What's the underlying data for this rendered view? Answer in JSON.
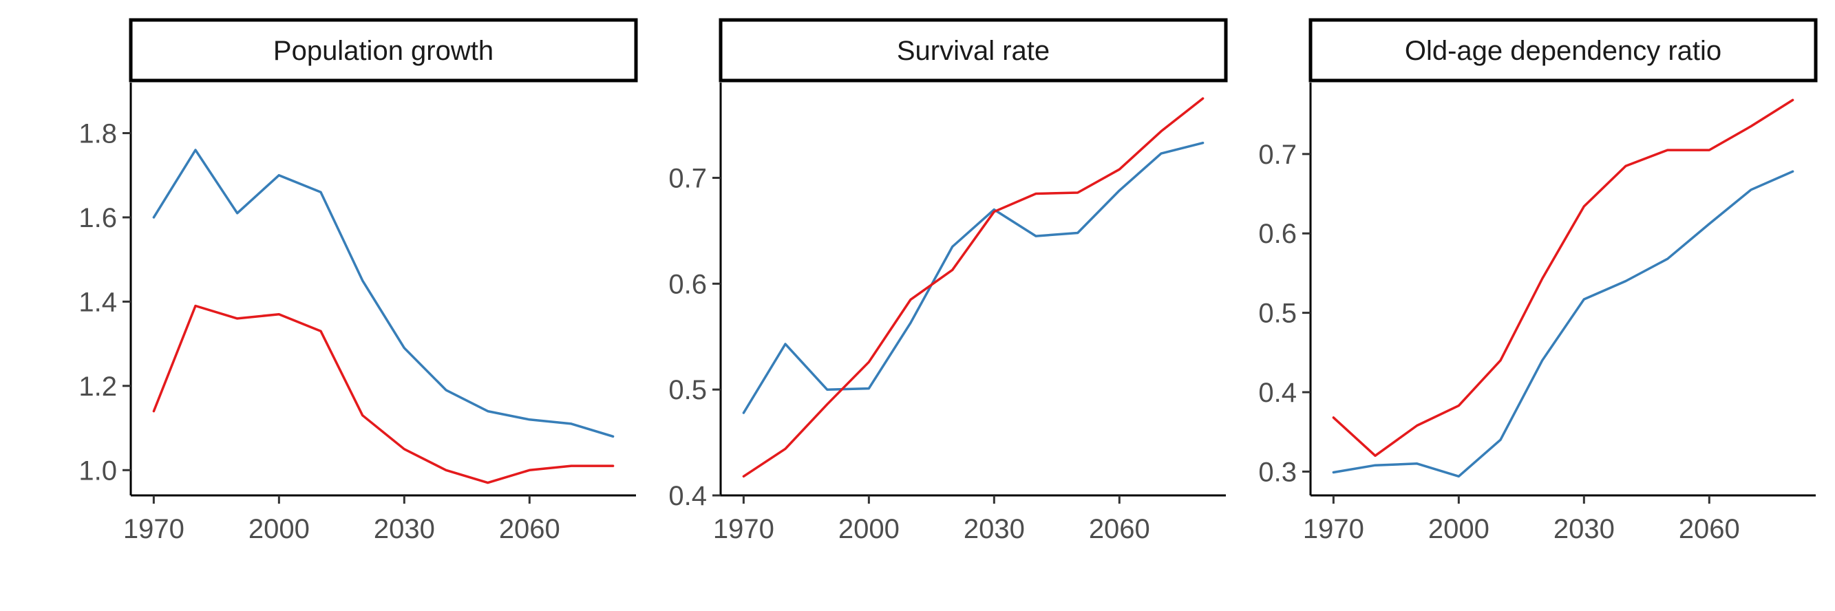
{
  "chart_data": [
    {
      "type": "line",
      "title": "Population growth",
      "x_ticks": [
        1970,
        2000,
        2030,
        2060
      ],
      "y_ticks": [
        1.0,
        1.2,
        1.4,
        1.6,
        1.8
      ],
      "y_tick_labels": [
        "1.0",
        "1.2",
        "1.4",
        "1.6",
        "1.8"
      ],
      "xlim": [
        1964.5,
        2085.5
      ],
      "ylim": [
        0.94,
        1.92
      ],
      "series": [
        {
          "color": "#377eb8",
          "x": [
            1970,
            1980,
            1990,
            2000,
            2010,
            2020,
            2030,
            2040,
            2050,
            2060,
            2070,
            2080
          ],
          "values": [
            1.6,
            1.76,
            1.61,
            1.7,
            1.66,
            1.45,
            1.29,
            1.19,
            1.14,
            1.12,
            1.11,
            1.08
          ]
        },
        {
          "color": "#e41a1c",
          "x": [
            1970,
            1980,
            1990,
            2000,
            2010,
            2020,
            2030,
            2040,
            2050,
            2060,
            2070,
            2080
          ],
          "values": [
            1.14,
            1.39,
            1.36,
            1.37,
            1.33,
            1.13,
            1.05,
            1.0,
            0.97,
            1.0,
            1.01,
            1.01
          ]
        }
      ]
    },
    {
      "type": "line",
      "title": "Survival rate",
      "x_ticks": [
        1970,
        2000,
        2030,
        2060
      ],
      "y_ticks": [
        0.4,
        0.5,
        0.6,
        0.7
      ],
      "y_tick_labels": [
        "0.4",
        "0.5",
        "0.6",
        "0.7"
      ],
      "xlim": [
        1964.5,
        2085.5
      ],
      "ylim": [
        0.4,
        0.79
      ],
      "series": [
        {
          "color": "#377eb8",
          "x": [
            1970,
            1980,
            1990,
            2000,
            2010,
            2020,
            2030,
            2040,
            2050,
            2060,
            2070,
            2080
          ],
          "values": [
            0.478,
            0.543,
            0.5,
            0.501,
            0.563,
            0.635,
            0.67,
            0.645,
            0.648,
            0.688,
            0.723,
            0.733
          ]
        },
        {
          "color": "#e41a1c",
          "x": [
            1970,
            1980,
            1990,
            2000,
            2010,
            2020,
            2030,
            2040,
            2050,
            2060,
            2070,
            2080
          ],
          "values": [
            0.418,
            0.444,
            0.486,
            0.526,
            0.585,
            0.613,
            0.668,
            0.685,
            0.686,
            0.708,
            0.744,
            0.775
          ]
        }
      ]
    },
    {
      "type": "line",
      "title": "Old-age dependency ratio",
      "x_ticks": [
        1970,
        2000,
        2030,
        2060
      ],
      "y_ticks": [
        0.3,
        0.4,
        0.5,
        0.6,
        0.7
      ],
      "y_tick_labels": [
        "0.3",
        "0.4",
        "0.5",
        "0.6",
        "0.7"
      ],
      "xlim": [
        1964.5,
        2085.5
      ],
      "ylim": [
        0.27,
        0.79
      ],
      "series": [
        {
          "color": "#377eb8",
          "x": [
            1970,
            1980,
            1990,
            2000,
            2010,
            2020,
            2030,
            2040,
            2050,
            2060,
            2070,
            2080
          ],
          "values": [
            0.299,
            0.308,
            0.31,
            0.294,
            0.34,
            0.44,
            0.517,
            0.54,
            0.568,
            0.612,
            0.655,
            0.678
          ]
        },
        {
          "color": "#e41a1c",
          "x": [
            1970,
            1980,
            1990,
            2000,
            2010,
            2020,
            2030,
            2040,
            2050,
            2060,
            2070,
            2080
          ],
          "values": [
            0.368,
            0.32,
            0.358,
            0.383,
            0.44,
            0.543,
            0.634,
            0.685,
            0.705,
            0.705,
            0.735,
            0.768
          ]
        }
      ]
    }
  ]
}
